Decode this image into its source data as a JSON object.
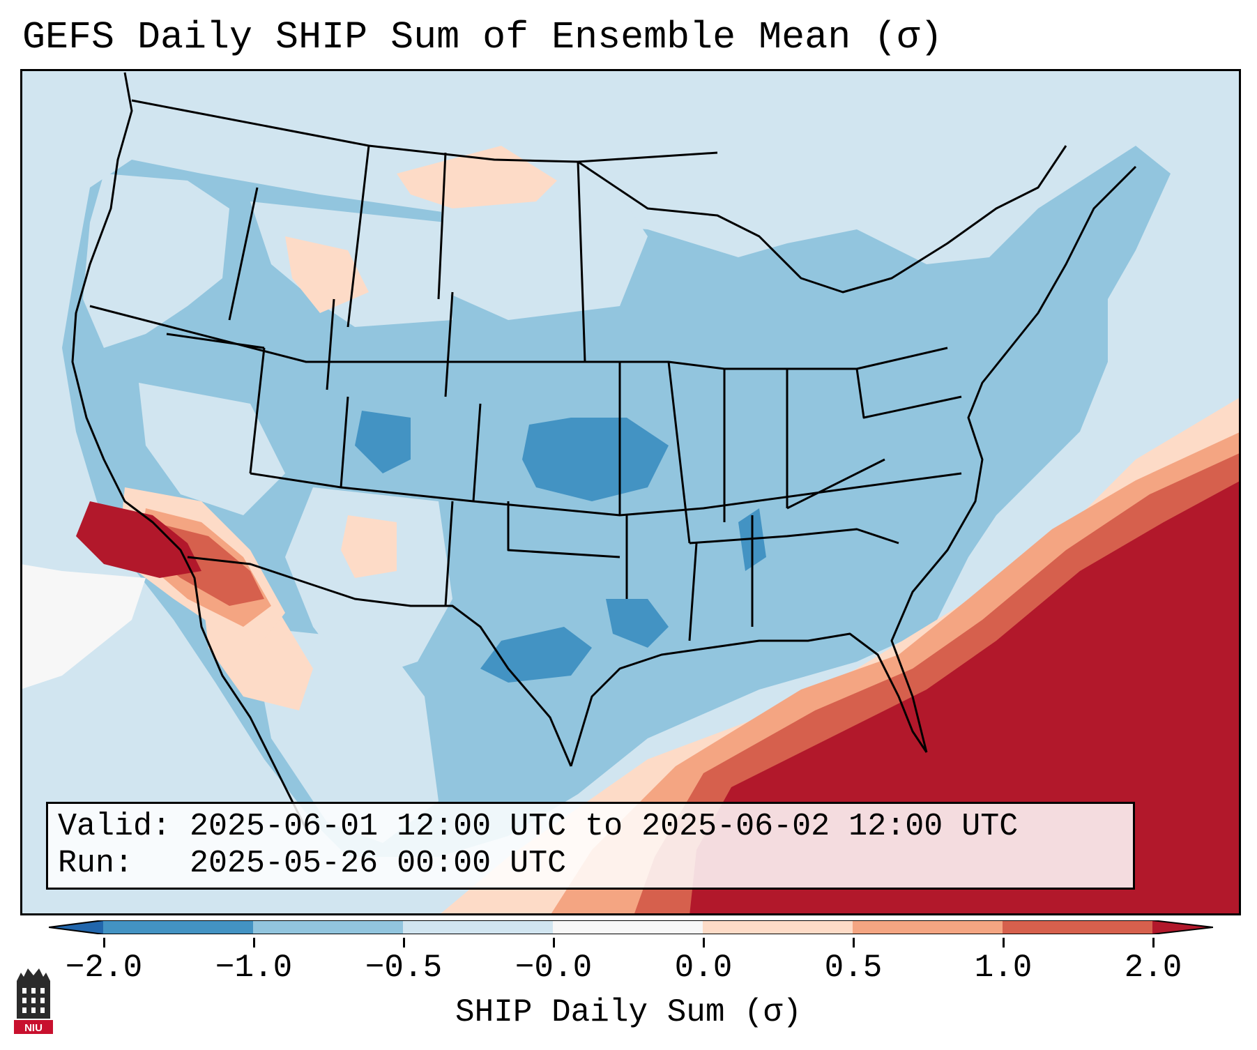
{
  "title": "GEFS Daily SHIP Sum of Ensemble Mean (σ)",
  "valid_line": "Valid: 2025-06-01 12:00 UTC to 2025-06-02 12:00 UTC",
  "run_line": "Run:   2025-05-26 00:00 UTC",
  "colorbar": {
    "label": "SHIP Daily Sum (σ)",
    "tick_labels": [
      "−2.0",
      "−1.0",
      "−0.5",
      "−0.0",
      "0.0",
      "0.5",
      "1.0",
      "2.0"
    ],
    "colors": [
      "#3f8fc5",
      "#92c5de",
      "#d1e5f0",
      "#f7f7f7",
      "#fddbc7",
      "#f4a582",
      "#d6604d",
      "#b2182b"
    ]
  },
  "logo_text": "NIU",
  "colors": {
    "ocean": "#d1e5f0",
    "land_default": "#92c5de",
    "border": "#000000"
  }
}
